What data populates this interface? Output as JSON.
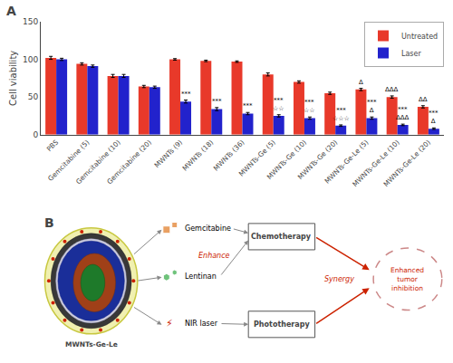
{
  "chart_data": {
    "type": "bar",
    "panel_label": "A",
    "categories": [
      "PBS",
      "Gemcitabine (5)",
      "Gemcitabine (10)",
      "Gemcitabine (20)",
      "MWNTs (9)",
      "MWNTs (18)",
      "MWNTs (36)",
      "MWNTs-Ge (5)",
      "MWNTs-Ge (10)",
      "MWNTs-Ge (20)",
      "MWNTs-Ge-Le (5)",
      "MWNTs-Ge-Le (10)",
      "MWNTs-Ge-Le (20)"
    ],
    "series": [
      {
        "name": "Untreated",
        "color": "#E8392A",
        "values": [
          102,
          94,
          78,
          64,
          100,
          98,
          97,
          80,
          70,
          55,
          60,
          50,
          37
        ],
        "errors": [
          2.0,
          1.5,
          2.0,
          1.5,
          1.0,
          1.0,
          1.0,
          2.0,
          1.5,
          1.5,
          1.5,
          1.5,
          1.5
        ]
      },
      {
        "name": "Laser",
        "color": "#2222CC",
        "values": [
          100,
          91,
          78,
          63,
          44,
          34,
          28,
          25,
          22,
          12,
          22,
          13,
          8
        ],
        "errors": [
          1.5,
          1.5,
          2.0,
          1.5,
          2.0,
          2.0,
          1.5,
          1.5,
          1.5,
          1.0,
          1.5,
          1.0,
          1.0
        ]
      }
    ],
    "ylabel": "Cell viability",
    "ylim": [
      0,
      150
    ],
    "yticks": [
      0,
      50,
      100,
      150
    ],
    "grid": false,
    "legend": "upper right",
    "annotations": [
      {
        "category": "MWNTs (9)",
        "series": "Laser",
        "text": "***"
      },
      {
        "category": "MWNTs (18)",
        "series": "Laser",
        "text": "***"
      },
      {
        "category": "MWNTs (36)",
        "series": "Laser",
        "text": "***"
      },
      {
        "category": "MWNTs-Ge (5)",
        "series": "Laser",
        "text": "***"
      },
      {
        "category": "MWNTs-Ge (5)",
        "series": "Laser",
        "text": "☆☆"
      },
      {
        "category": "MWNTs-Ge (10)",
        "series": "Laser",
        "text": "***"
      },
      {
        "category": "MWNTs-Ge (10)",
        "series": "Laser",
        "text": "☆☆"
      },
      {
        "category": "MWNTs-Ge (20)",
        "series": "Laser",
        "text": "***"
      },
      {
        "category": "MWNTs-Ge (20)",
        "series": "Laser",
        "text": "☆☆☆"
      },
      {
        "category": "MWNTs-Ge-Le (5)",
        "series": "Untreated",
        "text": "Δ"
      },
      {
        "category": "MWNTs-Ge-Le (5)",
        "series": "Laser",
        "text": "***"
      },
      {
        "category": "MWNTs-Ge-Le (5)",
        "series": "Laser",
        "text": "Δ"
      },
      {
        "category": "MWNTs-Ge-Le (10)",
        "series": "Untreated",
        "text": "ΔΔΔ"
      },
      {
        "category": "MWNTs-Ge-Le (10)",
        "series": "Laser",
        "text": "***"
      },
      {
        "category": "MWNTs-Ge-Le (10)",
        "series": "Laser",
        "text": "ΔΔΔ"
      },
      {
        "category": "MWNTs-Ge-Le (20)",
        "series": "Untreated",
        "text": "ΔΔ"
      },
      {
        "category": "MWNTs-Ge-Le (20)",
        "series": "Laser",
        "text": "***"
      },
      {
        "category": "MWNTs-Ge-Le (20)",
        "series": "Laser",
        "text": "Δ"
      }
    ]
  },
  "schematic": {
    "label": "B",
    "cell_label": "MWNTs-Ge-Le",
    "cell_colors": {
      "outer_halo": "#f0f0b0",
      "outer_halo_edge": "#c8c840",
      "dark_ring": "#383838",
      "blue_ring": "#1a2e99",
      "brown_inner": "#a04018",
      "green_core": "#1e7a2a",
      "red_dots": "#cc2200"
    },
    "items": [
      {
        "text": "Gemcitabine",
        "marker": "square",
        "color": "#e07820"
      },
      {
        "text": "Lentinan",
        "marker": "hexagon",
        "color": "#33aa44"
      },
      {
        "text": "NIR laser",
        "icon": "⚡",
        "color": "#cc2200"
      }
    ],
    "boxes": [
      {
        "text": "Chemotherapy",
        "color": "#ffffff"
      },
      {
        "text": "Phototherapy",
        "color": "#ffffff"
      }
    ],
    "box_edge_color": "#555555",
    "enhance": "Enhance",
    "synergy": "Synergy",
    "outcome": "Enhanced\ntumor\ninhibition",
    "arrow_gray": "#888888",
    "arrow_red": "#cc2200",
    "outcome_edge_color": "#cc8888",
    "outcome_text_color": "#cc2200"
  }
}
